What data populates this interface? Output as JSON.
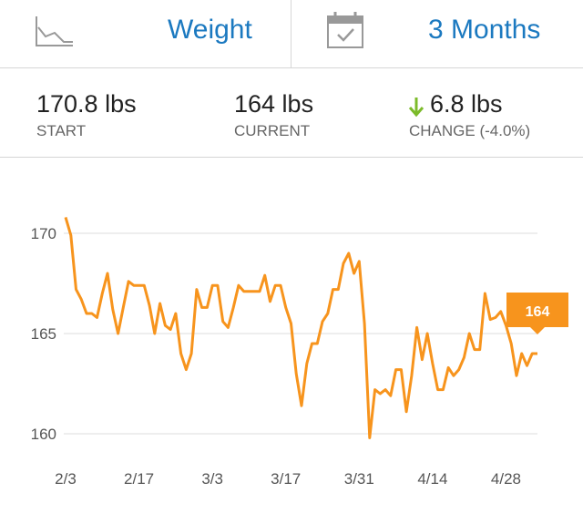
{
  "header": {
    "metric": "Weight",
    "range": "3 Months"
  },
  "stats": {
    "start": {
      "value": "170.8 lbs",
      "label": "START"
    },
    "current": {
      "value": "164 lbs",
      "label": "CURRENT"
    },
    "change": {
      "value": "6.8 lbs",
      "label": "CHANGE (-4.0%)"
    }
  },
  "chart_data": {
    "type": "line",
    "color": "#f7941d",
    "grid": true,
    "x": [
      "2/3",
      "2/4",
      "2/5",
      "2/6",
      "2/7",
      "2/8",
      "2/9",
      "2/10",
      "2/11",
      "2/12",
      "2/13",
      "2/14",
      "2/15",
      "2/16",
      "2/17",
      "2/18",
      "2/19",
      "2/20",
      "2/21",
      "2/22",
      "2/23",
      "2/24",
      "2/25",
      "2/26",
      "2/27",
      "2/28",
      "3/1",
      "3/2",
      "3/3",
      "3/4",
      "3/5",
      "3/6",
      "3/7",
      "3/8",
      "3/9",
      "3/10",
      "3/11",
      "3/12",
      "3/13",
      "3/14",
      "3/15",
      "3/16",
      "3/17",
      "3/18",
      "3/19",
      "3/20",
      "3/21",
      "3/22",
      "3/23",
      "3/24",
      "3/25",
      "3/26",
      "3/27",
      "3/28",
      "3/29",
      "3/30",
      "3/31",
      "4/1",
      "4/2",
      "4/3",
      "4/4",
      "4/5",
      "4/6",
      "4/7",
      "4/8",
      "4/9",
      "4/10",
      "4/11",
      "4/12",
      "4/13",
      "4/14",
      "4/15",
      "4/16",
      "4/17",
      "4/18",
      "4/19",
      "4/20",
      "4/21",
      "4/22",
      "4/23",
      "4/24",
      "4/25",
      "4/26",
      "4/27",
      "4/28",
      "4/29",
      "4/30",
      "5/1",
      "5/2",
      "5/3",
      "5/4"
    ],
    "values": [
      170.8,
      169.9,
      167.2,
      166.7,
      166.0,
      166.0,
      165.8,
      167.0,
      168.0,
      166.2,
      165.0,
      166.3,
      167.6,
      167.4,
      167.4,
      167.4,
      166.4,
      165.0,
      166.5,
      165.4,
      165.2,
      166.0,
      164.0,
      163.2,
      164.0,
      167.2,
      166.3,
      166.3,
      167.4,
      167.4,
      165.6,
      165.3,
      166.3,
      167.4,
      167.1,
      167.1,
      167.1,
      167.1,
      167.9,
      166.6,
      167.4,
      167.4,
      166.3,
      165.5,
      163.0,
      161.4,
      163.5,
      164.5,
      164.5,
      165.6,
      166.0,
      167.2,
      167.2,
      168.5,
      169.0,
      168.0,
      168.6,
      165.5,
      159.8,
      162.2,
      162.0,
      162.2,
      161.9,
      163.2,
      163.2,
      161.1,
      162.9,
      165.3,
      163.7,
      165.0,
      163.5,
      162.2,
      162.2,
      163.3,
      162.9,
      163.2,
      163.8,
      165.0,
      164.2,
      164.2,
      167.0,
      165.7,
      165.8,
      166.1,
      165.4,
      164.5,
      162.9,
      164.0,
      163.4,
      164.0,
      164.0
    ],
    "xticks": [
      "2/3",
      "2/17",
      "3/3",
      "3/17",
      "3/31",
      "4/14",
      "4/28"
    ],
    "ylim": [
      158.18,
      171.82
    ],
    "yticks": [
      160,
      165,
      170
    ],
    "annotation": "164"
  }
}
